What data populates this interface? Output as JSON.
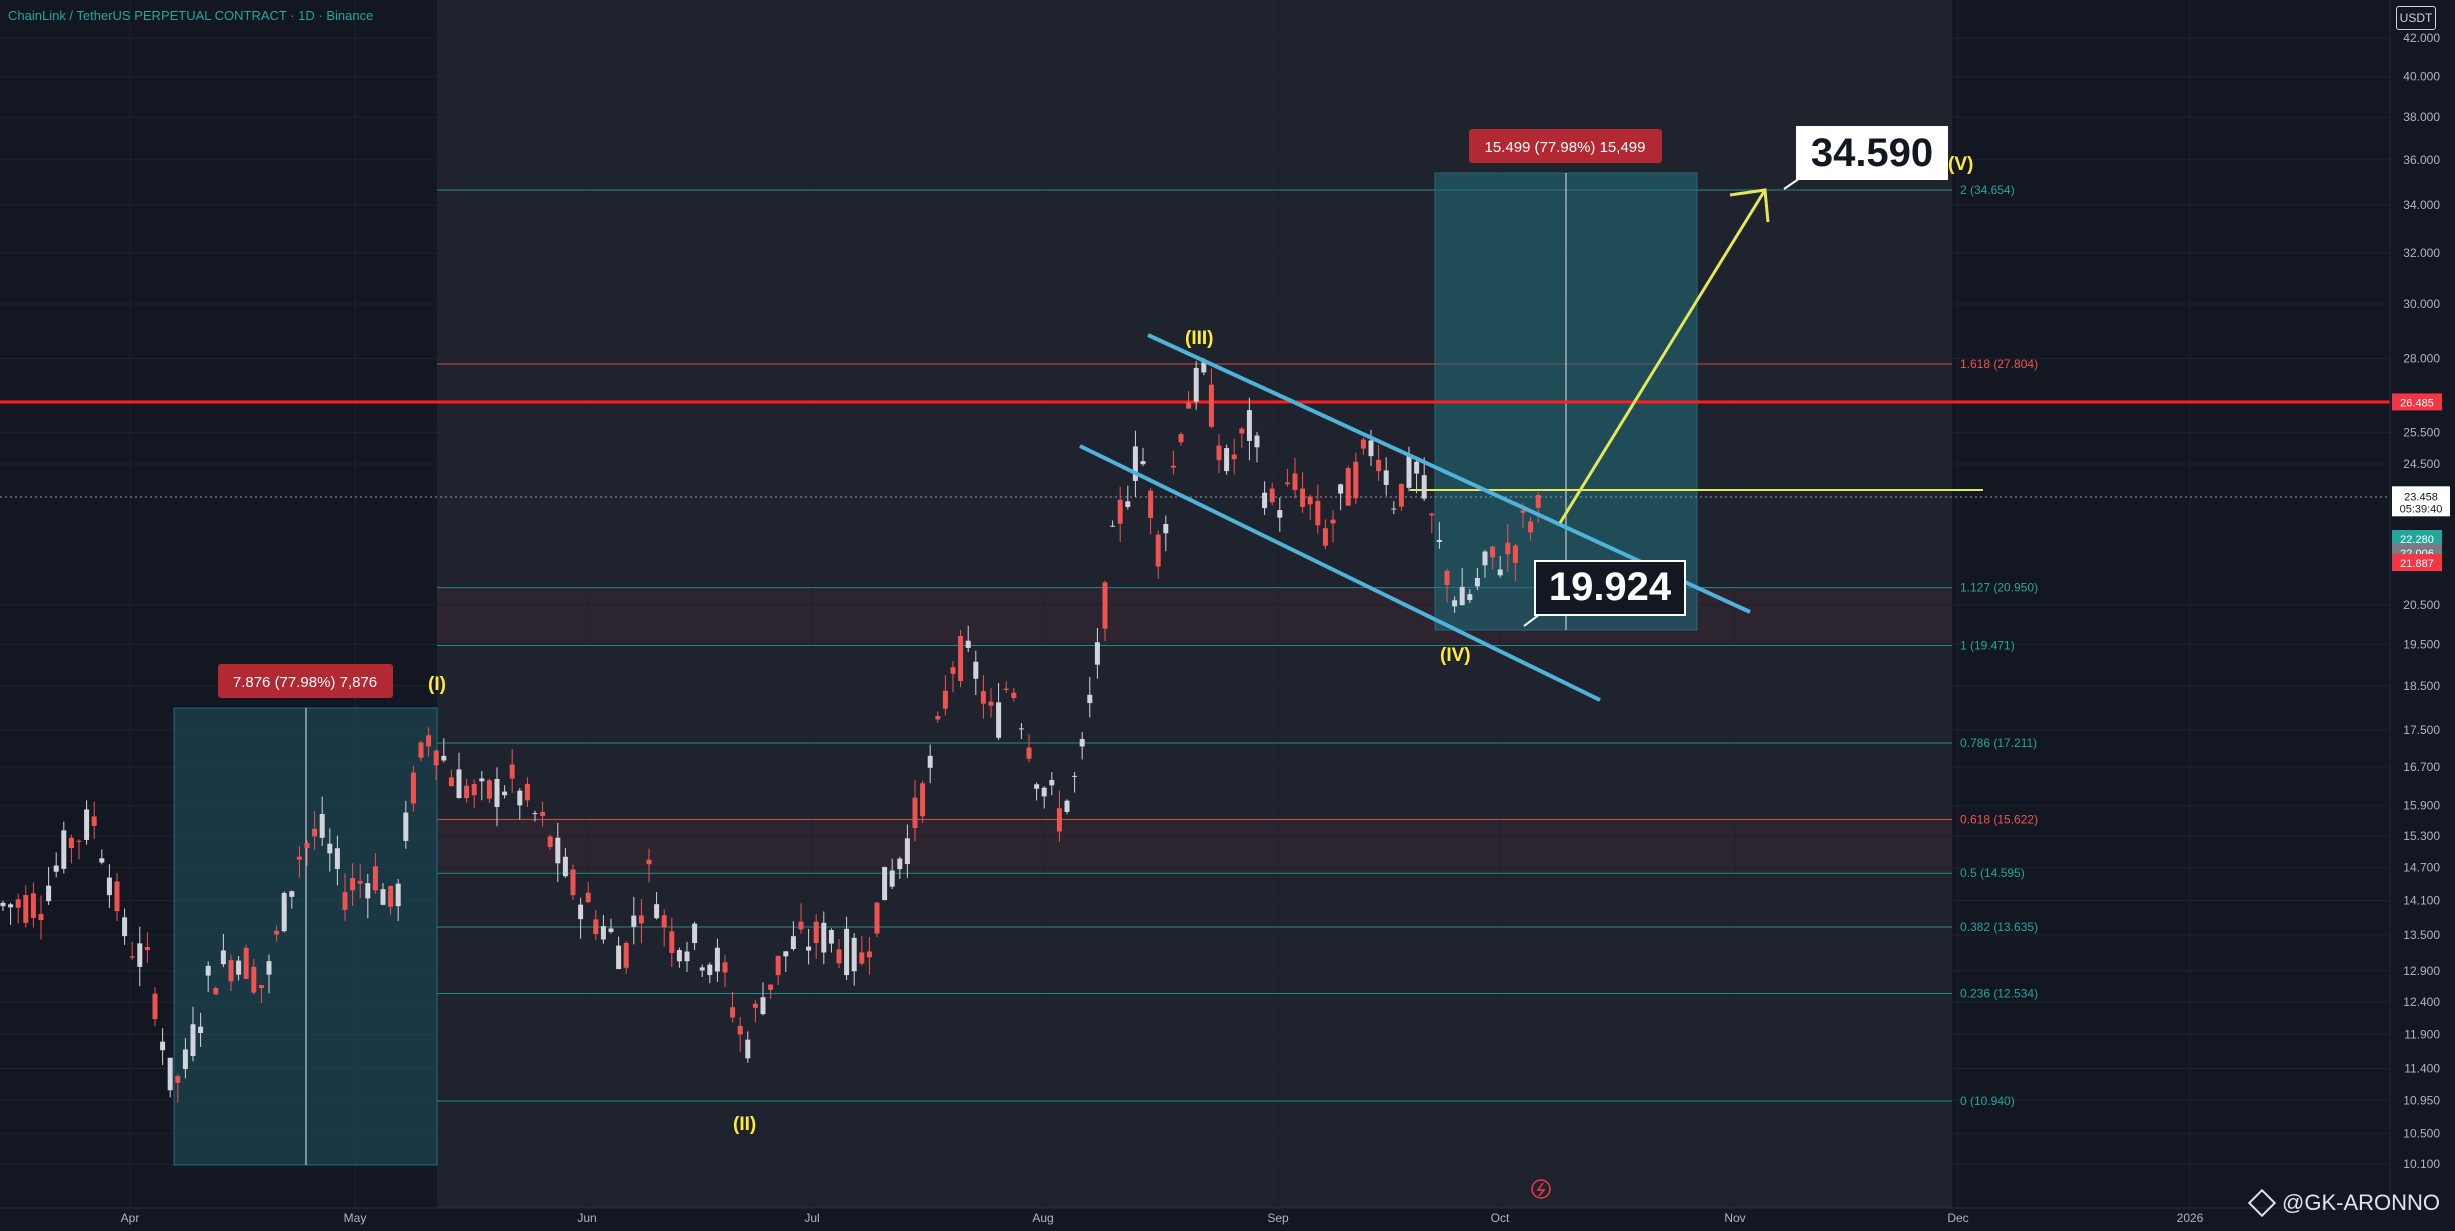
{
  "header": {
    "title": "ChainLink / TetherUS PERPETUAL CONTRACT · 1D · Binance"
  },
  "price_axis": {
    "currency": "USDT",
    "ticks": [
      "42.000",
      "40.000",
      "38.000",
      "36.000",
      "34.000",
      "32.000",
      "30.000",
      "28.000",
      "25.500",
      "24.500",
      "20.500",
      "19.500",
      "18.500",
      "17.500",
      "16.700",
      "15.900",
      "15.300",
      "14.700",
      "14.100",
      "13.500",
      "12.900",
      "12.400",
      "11.900",
      "11.400",
      "10.950",
      "10.500",
      "10.100"
    ],
    "current_price": "23.458",
    "countdown": "05:39:40",
    "tags": [
      {
        "value": "26.485",
        "color": "#f23645"
      },
      {
        "value": "22.280",
        "color": "#26a69a"
      },
      {
        "value": "22.006",
        "color": "#787b86"
      },
      {
        "value": "21.887",
        "color": "#f23645"
      }
    ]
  },
  "time_axis": {
    "labels": [
      "Apr",
      "May",
      "Jun",
      "Jul",
      "Aug",
      "Sep",
      "Oct",
      "Nov",
      "Dec",
      "2026"
    ]
  },
  "fib_levels": [
    {
      "label": "2 (34.654)",
      "value": 34.654,
      "color": "#26a69a"
    },
    {
      "label": "1.618 (27.804)",
      "value": 27.804,
      "color": "#ef5350"
    },
    {
      "label": "1.127 (20.950)",
      "value": 20.95,
      "color": "#26a69a"
    },
    {
      "label": "1 (19.471)",
      "value": 19.471,
      "color": "#26a69a"
    },
    {
      "label": "0.786 (17.211)",
      "value": 17.211,
      "color": "#26a69a"
    },
    {
      "label": "0.618 (15.622)",
      "value": 15.622,
      "color": "#ef5350"
    },
    {
      "label": "0.5 (14.595)",
      "value": 14.595,
      "color": "#26a69a"
    },
    {
      "label": "0.382 (13.635)",
      "value": 13.635,
      "color": "#26a69a"
    },
    {
      "label": "0.236 (12.534)",
      "value": 12.534,
      "color": "#26a69a"
    },
    {
      "label": "0 (10.940)",
      "value": 10.94,
      "color": "#26a69a"
    }
  ],
  "waves": [
    "(I)",
    "(II)",
    "(III)",
    "(IV)",
    "(V)"
  ],
  "measures": [
    {
      "text": "7.876 (77.98%) 7,876"
    },
    {
      "text": "15.499 (77.98%) 15,499"
    }
  ],
  "callouts": {
    "target": "34.590",
    "current": "19.924"
  },
  "resistance_level": 26.485,
  "watermark": "@GK-ARONNO",
  "colors": {
    "background": "#131722",
    "up": "#d1d4dc",
    "down": "#ef5350",
    "channel": "#4fb3d9",
    "arrow": "#e6e65a",
    "resistance": "#ff1e1e"
  },
  "chart_data": {
    "type": "candlestick",
    "title": "ChainLink / TetherUS PERPETUAL CONTRACT · 1D · Binance",
    "ylim": [
      10.0,
      42.0
    ],
    "scale": "log",
    "candles_summary": [
      {
        "period": "Mar-end",
        "close": 14.1
      },
      {
        "period": "Apr-07",
        "low": 10.7,
        "close": 11.4
      },
      {
        "period": "May-10",
        "high": 17.8,
        "close": 17.5
      },
      {
        "period": "Jun-22",
        "low": 10.94,
        "close": 11.9
      },
      {
        "period": "Jul-25",
        "high": 20.1,
        "close": 19.0
      },
      {
        "period": "Aug-04",
        "low": 15.4,
        "close": 16.5
      },
      {
        "period": "Aug-22",
        "high": 27.8,
        "close": 26.0
      },
      {
        "period": "Sep-25",
        "low": 19.924,
        "close": 20.5
      },
      {
        "period": "Oct-05",
        "high": 23.458,
        "close": 23.458
      }
    ]
  }
}
